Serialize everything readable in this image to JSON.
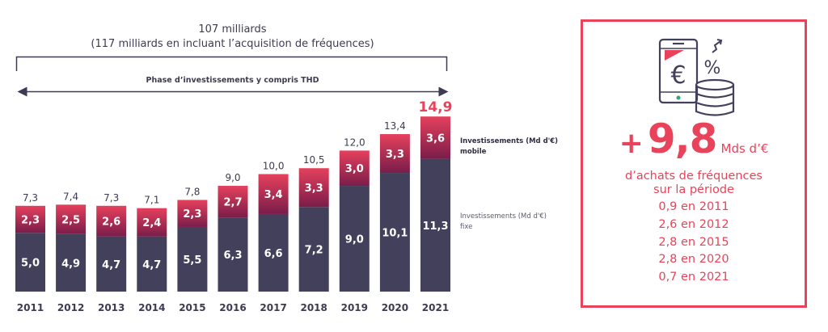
{
  "header": {
    "total_label": "107 milliards",
    "total_sub_label": "(117 milliards en incluant l’acquisition de fréquences)",
    "phase_label": "Phase d’investissements y compris THD"
  },
  "colors": {
    "fixed": "#42405a",
    "mobile_top": "#e5405c",
    "mobile_bottom": "#7a1d4a",
    "accent": "#e8435a",
    "text_dark": "#3d3b52"
  },
  "chart_data": {
    "type": "bar",
    "stacked": true,
    "categories": [
      "2011",
      "2012",
      "2013",
      "2014",
      "2015",
      "2016",
      "2017",
      "2018",
      "2019",
      "2020",
      "2021"
    ],
    "series": [
      {
        "name": "Investissements (Md d'€) fixe",
        "values": [
          5.0,
          4.9,
          4.7,
          4.7,
          5.5,
          6.3,
          6.6,
          7.2,
          9.0,
          10.1,
          11.3
        ],
        "labels": [
          "5,0",
          "4,9",
          "4,7",
          "4,7",
          "5,5",
          "6,3",
          "6,6",
          "7,2",
          "9,0",
          "10,1",
          "11,3"
        ]
      },
      {
        "name": "Investissements (Md d'€) mobile",
        "values": [
          2.3,
          2.5,
          2.6,
          2.4,
          2.3,
          2.7,
          3.4,
          3.3,
          3.0,
          3.3,
          3.6
        ],
        "labels": [
          "2,3",
          "2,5",
          "2,6",
          "2,4",
          "2,3",
          "2,7",
          "3,4",
          "3,3",
          "3,0",
          "3,3",
          "3,6"
        ]
      }
    ],
    "totals": [
      7.3,
      7.4,
      7.3,
      7.1,
      7.8,
      9.0,
      10.0,
      10.5,
      12.0,
      13.4,
      14.9
    ],
    "total_labels": [
      "7,3",
      "7,4",
      "7,3",
      "7,1",
      "7,8",
      "9,0",
      "10,0",
      "10,5",
      "12,0",
      "13,4",
      "14,9"
    ],
    "highlight_total_index": 10,
    "legend": {
      "mobile": [
        "Investissements (Md d'€)",
        "mobile"
      ],
      "fixe": [
        "Investissements (Md d'€)",
        "fixe"
      ],
      "placement": "right"
    },
    "title": "",
    "xlabel": "",
    "ylabel": "",
    "ylim": [
      0,
      15
    ],
    "grid": false,
    "annotations": [
      "107 milliards",
      "(117 milliards en incluant l’acquisition de fréquences)",
      "Phase d’investissements y compris THD"
    ]
  },
  "panel": {
    "icon": "phone-euro-coins-percent-icon",
    "plus_sign": "+",
    "amount": "9,8",
    "unit": "Mds d’€",
    "desc_line1": "d’achats de fréquences",
    "desc_line2": "sur la période",
    "items": [
      "0,9 en 2011",
      "2,6 en 2012",
      "2,8 en 2015",
      "2,8 en 2020",
      "0,7 en 2021"
    ]
  }
}
